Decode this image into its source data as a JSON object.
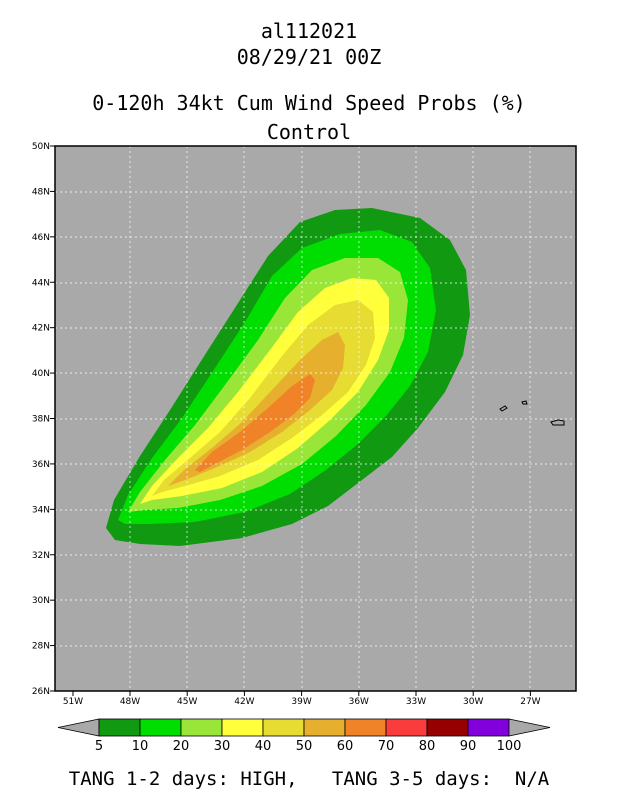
{
  "header": {
    "storm_id": "al112021",
    "datetime": "08/29/21 00Z",
    "product": "0-120h 34kt Cum Wind Speed Probs (%)",
    "run": "Control"
  },
  "map": {
    "background_color": "#a9a9a9",
    "lat_labels": [
      "50N",
      "48N",
      "46N",
      "44N",
      "42N",
      "40N",
      "38N",
      "36N",
      "34N",
      "32N",
      "30N",
      "28N",
      "26N"
    ],
    "lon_labels": [
      "51W",
      "48W",
      "45W",
      "42W",
      "39W",
      "36W",
      "33W",
      "30W",
      "27W"
    ],
    "grid": true
  },
  "colorbar": {
    "ticks": [
      "5",
      "10",
      "20",
      "30",
      "40",
      "50",
      "60",
      "70",
      "80",
      "90",
      "100"
    ],
    "colors": [
      "#119911",
      "#00dd00",
      "#99e639",
      "#ffff3b",
      "#e6dc32",
      "#e6af2d",
      "#f08228",
      "#fa3c3c",
      "#960000",
      "#8200dc"
    ],
    "extend_color": "#a9a9a9"
  },
  "footer": {
    "text": "TANG 1-2 days: HIGH,   TANG 3-5 days:  N/A"
  }
}
